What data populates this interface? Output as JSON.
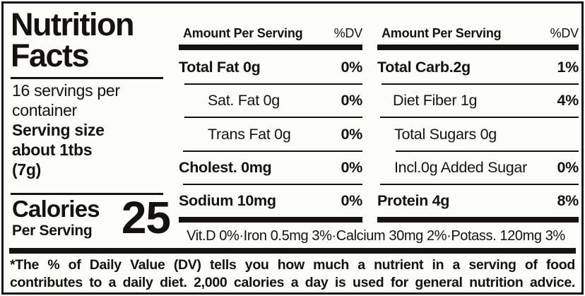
{
  "label": {
    "title": "Nutrition\nFacts",
    "servings_per_container": "16 servings per\ncontainer",
    "serving_size": "Serving size\nabout 1tbs\n(7g)",
    "calories": {
      "label": "Calories",
      "sublabel": "Per Serving",
      "value": "25"
    },
    "panels": [
      {
        "header": "Amount Per Serving",
        "dv_header": "%DV",
        "rows": [
          {
            "name": "Total Fat 0g",
            "value": "0%",
            "bold": true,
            "indent": 0,
            "sep_indent": 0
          },
          {
            "name": "Sat. Fat 0g",
            "value": "0%",
            "bold": false,
            "indent": 41,
            "sep_indent": 8
          },
          {
            "name": "Trans Fat 0g",
            "value": "0%",
            "bold": false,
            "indent": 41,
            "sep_indent": 8
          },
          {
            "name": "Cholest. 0mg",
            "value": "0%",
            "bold": true,
            "indent": 0,
            "sep_indent": 6
          },
          {
            "name": "Sodium 10mg",
            "value": "0%",
            "bold": true,
            "indent": 0,
            "sep_indent": 6
          }
        ]
      },
      {
        "header": "Amount Per Serving",
        "dv_header": "%DV",
        "rows": [
          {
            "name": "Total Carb.2g",
            "value": "1%",
            "bold": true,
            "indent": 0,
            "sep_indent": 0
          },
          {
            "name": "Diet Fiber 1g",
            "value": "4%",
            "bold": false,
            "indent": 22,
            "sep_indent": 6
          },
          {
            "name": "Total Sugars 0g",
            "value": "",
            "bold": false,
            "indent": 24,
            "sep_indent": 4
          },
          {
            "name": "Incl.0g Added Sugar",
            "value": "0%",
            "bold": false,
            "indent": 24,
            "sep_indent": 26
          },
          {
            "name": "Protein 4g",
            "value": "8%",
            "bold": true,
            "indent": 0,
            "sep_indent": 4
          }
        ]
      }
    ],
    "micronutrients": "Vit.D 0%·Iron 0.5mg 3%·Calcium 30mg 2%·Potass. 120mg 3%",
    "footnote_line1": "*The % of Daily Value (DV) tells you how much a nutrient in a serving of food",
    "footnote_line2": "contributes to a daily diet. 2,000 calories a day is used for general nutrition advice.",
    "colors": {
      "text": "#151210",
      "background": "#fcfcf8"
    }
  }
}
